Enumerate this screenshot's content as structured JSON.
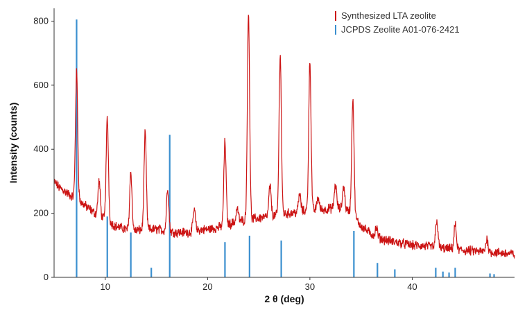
{
  "chart_data": {
    "type": "line",
    "xlabel": "2 θ (deg)",
    "ylabel": "Intensity (counts)",
    "xlim": [
      5,
      50
    ],
    "ylim": [
      0,
      840
    ],
    "x_ticks": [
      10,
      20,
      30,
      40
    ],
    "y_ticks": [
      0,
      200,
      400,
      600,
      800
    ],
    "legend_position": "top-right",
    "grid": false,
    "series": [
      {
        "name": "Synthesized LTA zeolite",
        "kind": "line",
        "color": "#cc1414",
        "baseline": [
          [
            5,
            300
          ],
          [
            5.5,
            280
          ],
          [
            6,
            270
          ],
          [
            6.5,
            258
          ],
          [
            7,
            248
          ],
          [
            8,
            225
          ],
          [
            9,
            200
          ],
          [
            10,
            180
          ],
          [
            11,
            160
          ],
          [
            12,
            150
          ],
          [
            13,
            146
          ],
          [
            14,
            150
          ],
          [
            15,
            150
          ],
          [
            16,
            145
          ],
          [
            17,
            140
          ],
          [
            18,
            140
          ],
          [
            19,
            147
          ],
          [
            20,
            150
          ],
          [
            21,
            155
          ],
          [
            22,
            165
          ],
          [
            23,
            175
          ],
          [
            24,
            180
          ],
          [
            25,
            185
          ],
          [
            26,
            190
          ],
          [
            27,
            195
          ],
          [
            28,
            200
          ],
          [
            29,
            205
          ],
          [
            30,
            210
          ],
          [
            31,
            210
          ],
          [
            32,
            215
          ],
          [
            33,
            215
          ],
          [
            34,
            205
          ],
          [
            35,
            160
          ],
          [
            36,
            135
          ],
          [
            37,
            120
          ],
          [
            38,
            112
          ],
          [
            39,
            106
          ],
          [
            40,
            100
          ],
          [
            41,
            98
          ],
          [
            42,
            95
          ],
          [
            43,
            90
          ],
          [
            44,
            88
          ],
          [
            45,
            84
          ],
          [
            46,
            82
          ],
          [
            47,
            80
          ],
          [
            48,
            78
          ],
          [
            49,
            75
          ],
          [
            50,
            72
          ]
        ],
        "peaks": [
          {
            "x": 7.2,
            "y": 640
          },
          {
            "x": 9.4,
            "y": 300
          },
          {
            "x": 10.2,
            "y": 495
          },
          {
            "x": 12.5,
            "y": 330
          },
          {
            "x": 13.9,
            "y": 450
          },
          {
            "x": 16.1,
            "y": 280
          },
          {
            "x": 18.7,
            "y": 210
          },
          {
            "x": 21.7,
            "y": 425
          },
          {
            "x": 22.9,
            "y": 215
          },
          {
            "x": 24.0,
            "y": 825
          },
          {
            "x": 26.1,
            "y": 285
          },
          {
            "x": 27.1,
            "y": 700
          },
          {
            "x": 29.0,
            "y": 260
          },
          {
            "x": 30.0,
            "y": 675
          },
          {
            "x": 30.8,
            "y": 250
          },
          {
            "x": 32.5,
            "y": 290
          },
          {
            "x": 33.3,
            "y": 285
          },
          {
            "x": 34.2,
            "y": 560
          },
          {
            "x": 36.5,
            "y": 155
          },
          {
            "x": 42.4,
            "y": 180
          },
          {
            "x": 44.2,
            "y": 165
          },
          {
            "x": 47.3,
            "y": 120
          }
        ]
      },
      {
        "name": "JCPDS Zeolite A01-076-2421",
        "kind": "sticks",
        "color": "#3a8fcf",
        "sticks": [
          {
            "x": 7.2,
            "y": 805
          },
          {
            "x": 10.2,
            "y": 190
          },
          {
            "x": 12.5,
            "y": 140
          },
          {
            "x": 14.5,
            "y": 30
          },
          {
            "x": 16.3,
            "y": 445
          },
          {
            "x": 21.7,
            "y": 110
          },
          {
            "x": 24.1,
            "y": 130
          },
          {
            "x": 27.2,
            "y": 115
          },
          {
            "x": 34.3,
            "y": 145
          },
          {
            "x": 36.6,
            "y": 45
          },
          {
            "x": 38.3,
            "y": 25
          },
          {
            "x": 42.3,
            "y": 30
          },
          {
            "x": 43.0,
            "y": 18
          },
          {
            "x": 43.6,
            "y": 15
          },
          {
            "x": 44.2,
            "y": 30
          },
          {
            "x": 47.6,
            "y": 12
          },
          {
            "x": 48.0,
            "y": 10
          }
        ]
      }
    ]
  }
}
